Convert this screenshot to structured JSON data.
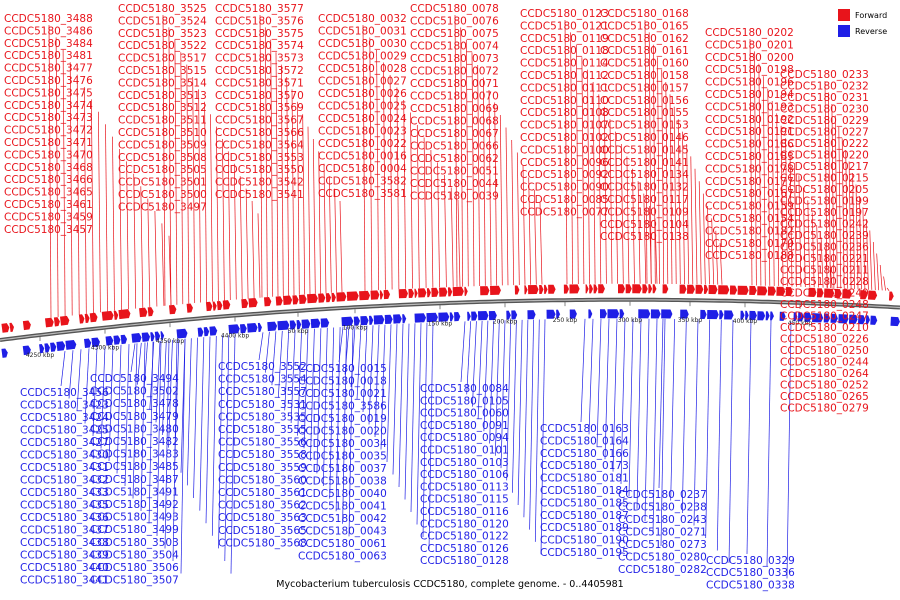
{
  "caption": "Mycobacterium tuberculosis CCDC5180, complete genome. - 0..4405981",
  "colors": {
    "forward": "#e8141b",
    "reverse": "#1f1fe6",
    "backbone": "#666666"
  },
  "legend": [
    {
      "label": "Forward",
      "color": "#e8141b"
    },
    {
      "label": "Reverse",
      "color": "#1f1fe6"
    }
  ],
  "scale_labels": [
    "4250 kbp",
    "4300 kbp",
    "4350 kbp",
    "4400 kbp",
    "50 kbp",
    "100 kbp",
    "150 kbp",
    "200 kbp",
    "250 kbp",
    "300 kbp",
    "350 kbp",
    "400 kbp",
    "450 kbp"
  ],
  "forward_label_columns": [
    [
      "CCDC5180_3488",
      "CCDC5180_3486",
      "CCDC5180_3484",
      "CCDC5180_3481",
      "CCDC5180_3477",
      "CCDC5180_3476",
      "CCDC5180_3475",
      "CCDC5180_3474",
      "CCDC5180_3473",
      "CCDC5180_3472",
      "CCDC5180_3471",
      "CCDC5180_3470",
      "CCDC5180_3468",
      "CCDC5180_3466",
      "CCDC5180_3465",
      "CCDC5180_3461",
      "CCDC5180_3459",
      "CCDC5180_3457"
    ],
    [
      "CCDC5180_3525",
      "CCDC5180_3524",
      "CCDC5180_3523",
      "CCDC5180_3522",
      "CCDC5180_3517",
      "CCDC5180_3515",
      "CCDC5180_3514",
      "CCDC5180_3513",
      "CCDC5180_3512",
      "CCDC5180_3511",
      "CCDC5180_3510",
      "CCDC5180_3509",
      "CCDC5180_3508",
      "CCDC5180_3505",
      "CCDC5180_3501",
      "CCDC5180_3500",
      "CCDC5180_3497"
    ],
    [
      "CCDC5180_3577",
      "CCDC5180_3576",
      "CCDC5180_3575",
      "CCDC5180_3574",
      "CCDC5180_3573",
      "CCDC5180_3572",
      "CCDC5180_3571",
      "CCDC5180_3570",
      "CCDC5180_3569",
      "CCDC5180_3567",
      "CCDC5180_3566",
      "CCDC5180_3564",
      "CCDC5180_3553",
      "CCDC5180_3550",
      "CCDC5180_3542",
      "CCDC5180_3541"
    ],
    [
      "CCDC5180_0032",
      "CCDC5180_0031",
      "CCDC5180_0030",
      "CCDC5180_0029",
      "CCDC5180_0028",
      "CCDC5180_0027",
      "CCDC5180_0026",
      "CCDC5180_0025",
      "CCDC5180_0024",
      "CCDC5180_0023",
      "CCDC5180_0022",
      "CCDC5180_0016",
      "CCDC5180_0004",
      "CCDC5180_3582",
      "CCDC5180_3581"
    ],
    [
      "CCDC5180_0078",
      "CCDC5180_0076",
      "CCDC5180_0075",
      "CCDC5180_0074",
      "CCDC5180_0073",
      "CCDC5180_0072",
      "CCDC5180_0071",
      "CCDC5180_0070",
      "CCDC5180_0069",
      "CCDC5180_0068",
      "CCDC5180_0067",
      "CCDC5180_0066",
      "CCDC5180_0062",
      "CCDC5180_0051",
      "CCDC5180_0044",
      "CCDC5180_0039"
    ],
    [
      "CCDC5180_0123",
      "CCDC5180_0121",
      "CCDC5180_0119",
      "CCDC5180_0118",
      "CCDC5180_0114",
      "CCDC5180_0112",
      "CCDC5180_0111",
      "CCDC5180_0110",
      "CCDC5180_0108",
      "CCDC5180_0107",
      "CCDC5180_0102",
      "CCDC5180_0100",
      "CCDC5180_0096",
      "CCDC5180_0092",
      "CCDC5180_0090",
      "CCDC5180_0085",
      "CCDC5180_0077"
    ],
    [
      "CCDC5180_0168",
      "CCDC5180_0165",
      "CCDC5180_0162",
      "CCDC5180_0161",
      "CCDC5180_0160",
      "CCDC5180_0158",
      "CCDC5180_0157",
      "CCDC5180_0156",
      "CCDC5180_0155",
      "CCDC5180_0153",
      "CCDC5180_0146",
      "CCDC5180_0145",
      "CCDC5180_0141",
      "CCDC5180_0134",
      "CCDC5180_0132",
      "CCDC5180_0117",
      "CCDC5180_0109",
      "CCDC5180_0104",
      "CCDC5180_0138"
    ],
    [
      "CCDC5180_0202",
      "CCDC5180_0201",
      "CCDC5180_0200",
      "CCDC5180_0198",
      "CCDC5180_0196",
      "CCDC5180_0194",
      "CCDC5180_0193",
      "CCDC5180_0192",
      "CCDC5180_0191",
      "CCDC5180_0186",
      "CCDC5180_0183",
      "CCDC5180_0178",
      "CCDC5180_0177",
      "CCDC5180_0167",
      "CCDC5180_0159",
      "CCDC5180_0154",
      "CCDC5180_0182",
      "CCDC5180_0170",
      "CCDC5180_0188"
    ],
    [
      "CCDC5180_0233",
      "CCDC5180_0232",
      "CCDC5180_0231",
      "CCDC5180_0230",
      "CCDC5180_0229",
      "CCDC5180_0227",
      "CCDC5180_0222",
      "CCDC5180_0220",
      "CCDC5180_0217",
      "CCDC5180_0215",
      "CCDC5180_0205",
      "CCDC5180_0199",
      "CCDC5180_0197",
      "CCDC5180_0242",
      "CCDC5180_0239",
      "CCDC5180_0236",
      "CCDC5180_0221",
      "CCDC5180_0211",
      "CCDC5180_0228",
      "CCDC5180_0249",
      "CCDC5180_0248",
      "CCDC5180_0247",
      "CCDC5180_0210",
      "CCDC5180_0226",
      "CCDC5180_0250",
      "CCDC5180_0244",
      "CCDC5180_0264",
      "CCDC5180_0252",
      "CCDC5180_0265",
      "CCDC5180_0279"
    ]
  ],
  "reverse_label_columns": [
    [
      "CCDC5180_3456",
      "CCDC5180_3423",
      "CCDC5180_3424",
      "CCDC5180_3425",
      "CCDC5180_3427",
      "CCDC5180_3430",
      "CCDC5180_3431",
      "CCDC5180_3432",
      "CCDC5180_3433",
      "CCDC5180_3435",
      "CCDC5180_3436",
      "CCDC5180_3437",
      "CCDC5180_3438",
      "CCDC5180_3439",
      "CCDC5180_3440",
      "CCDC5180_3441"
    ],
    [
      "CCDC5180_3494",
      "CCDC5180_3502",
      "CCDC5180_3478",
      "CCDC5180_3479",
      "CCDC5180_3480",
      "CCDC5180_3482",
      "CCDC5180_3483",
      "CCDC5180_3485",
      "CCDC5180_3487",
      "CCDC5180_3491",
      "CCDC5180_3492",
      "CCDC5180_3493",
      "CCDC5180_3499",
      "CCDC5180_3503",
      "CCDC5180_3504",
      "CCDC5180_3506",
      "CCDC5180_3507"
    ],
    [
      "CCDC5180_3552",
      "CCDC5180_3554",
      "CCDC5180_3557",
      "CCDC5180_3531",
      "CCDC5180_3535",
      "CCDC5180_3555",
      "CCDC5180_3556",
      "CCDC5180_3558",
      "CCDC5180_3559",
      "CCDC5180_3560",
      "CCDC5180_3561",
      "CCDC5180_3562",
      "CCDC5180_3563",
      "CCDC5180_3565",
      "CCDC5180_3568"
    ],
    [
      "CCDC5180_0015",
      "CCDC5180_0018",
      "CCDC5180_0021",
      "CCDC5180_3586",
      "CCDC5180_0019",
      "CCDC5180_0020",
      "CCDC5180_0034",
      "CCDC5180_0035",
      "CCDC5180_0037",
      "CCDC5180_0038",
      "CCDC5180_0040",
      "CCDC5180_0041",
      "CCDC5180_0042",
      "CCDC5180_0043",
      "CCDC5180_0061",
      "CCDC5180_0063"
    ],
    [
      "CCDC5180_0084",
      "CCDC5180_0105",
      "CCDC5180_0060",
      "CCDC5180_0091",
      "CCDC5180_0094",
      "CCDC5180_0101",
      "CCDC5180_0103",
      "CCDC5180_0106",
      "CCDC5180_0113",
      "CCDC5180_0115",
      "CCDC5180_0116",
      "CCDC5180_0120",
      "CCDC5180_0122",
      "CCDC5180_0126",
      "CCDC5180_0128"
    ],
    [
      "CCDC5180_0163",
      "CCDC5180_0164",
      "CCDC5180_0166",
      "CCDC5180_0173",
      "CCDC5180_0181",
      "CCDC5180_0184",
      "CCDC5180_0185",
      "CCDC5180_0187",
      "CCDC5180_0189",
      "CCDC5180_0190",
      "CCDC5180_0195"
    ],
    [
      "CCDC5180_0237",
      "CCDC5180_0238",
      "CCDC5180_0243",
      "CCDC5180_0271",
      "CCDC5180_0273",
      "CCDC5180_0280",
      "CCDC5180_0282"
    ],
    [
      "CCDC5180_0329",
      "CCDC5180_0336",
      "CCDC5180_0338"
    ]
  ]
}
